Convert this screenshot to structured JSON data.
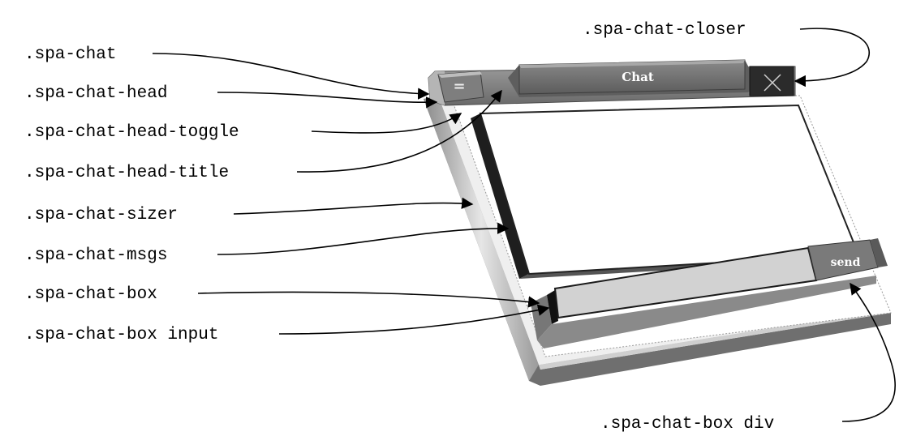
{
  "diagram": {
    "labels": {
      "spa_chat": ".spa-chat",
      "head": ".spa-chat-head",
      "head_toggle": ".spa-chat-head-toggle",
      "head_title": ".spa-chat-head-title",
      "sizer": ".spa-chat-sizer",
      "msgs": ".spa-chat-msgs",
      "box": ".spa-chat-box",
      "box_input": ".spa-chat-box input",
      "closer": ".spa-chat-closer",
      "box_div": ".spa-chat-box div"
    },
    "ui": {
      "toggle_glyph": "=",
      "title_text": "Chat",
      "send_text": "send",
      "close_icon": "close-icon"
    },
    "colors": {
      "frame_dark": "#6b6b6b",
      "frame_mid": "#8c8c8c",
      "frame_light": "#c8c8c8",
      "panel_white": "#ffffff",
      "input_gray": "#d2d2d2",
      "closer_dark": "#2b2b2b",
      "ink": "#000000"
    }
  }
}
